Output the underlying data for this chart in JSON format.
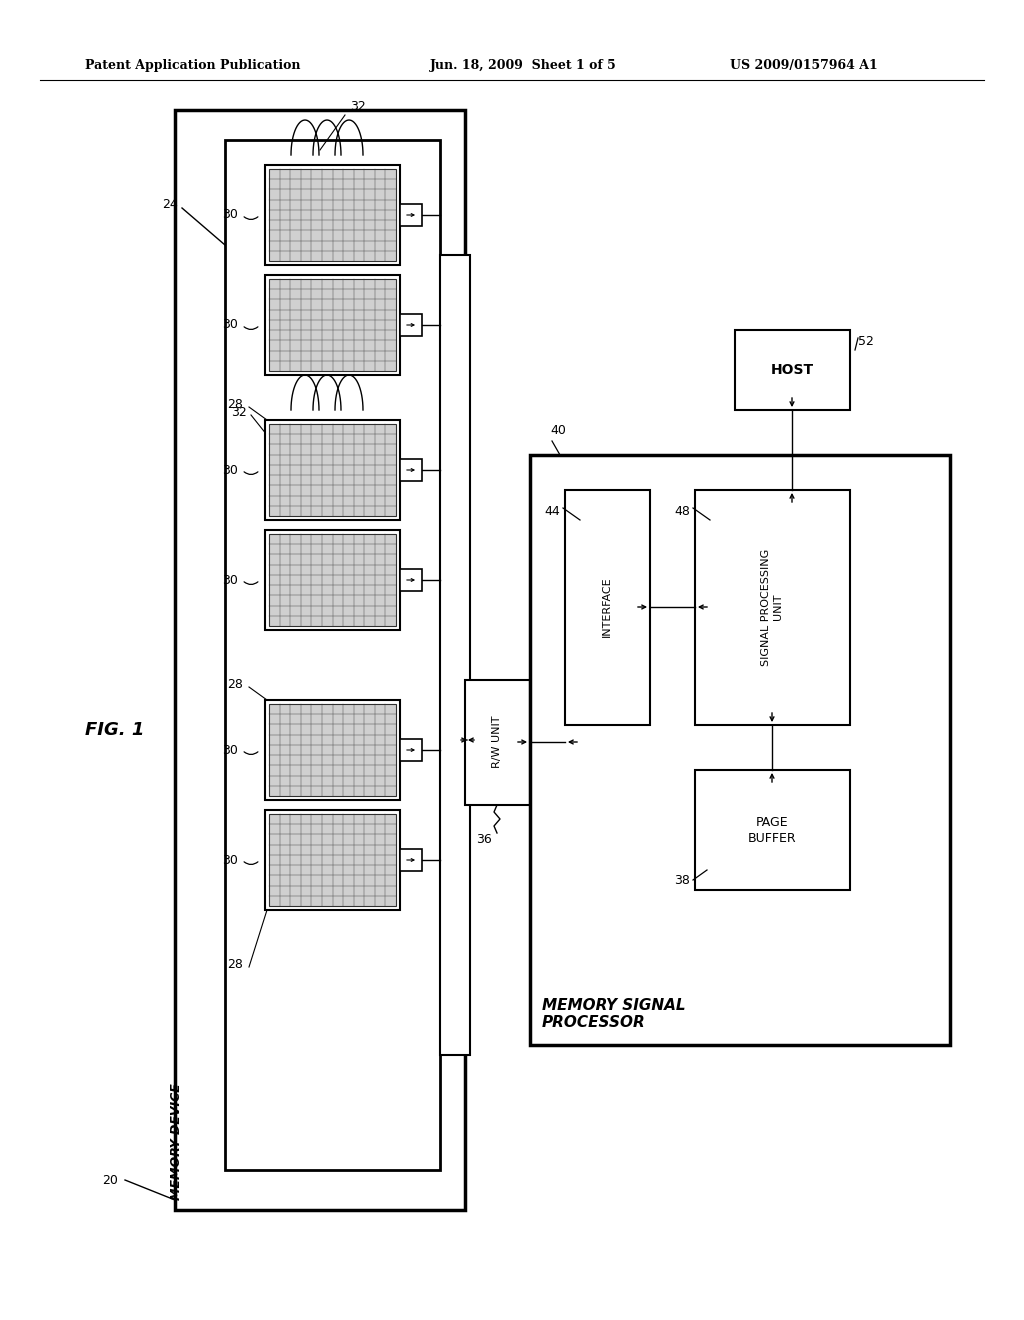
{
  "bg_color": "#ffffff",
  "header_left": "Patent Application Publication",
  "header_mid": "Jun. 18, 2009  Sheet 1 of 5",
  "header_right": "US 2009/0157964 A1",
  "fig_label": "FIG. 1"
}
